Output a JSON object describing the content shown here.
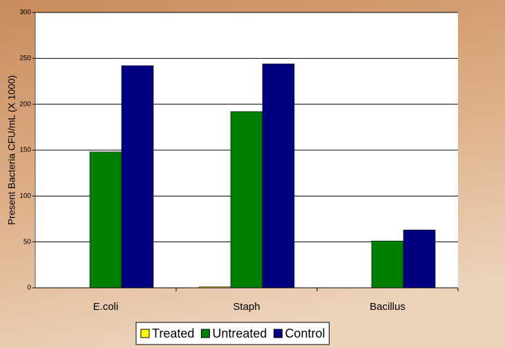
{
  "chart_data": {
    "type": "bar",
    "y_label": "Present Bacteria CFU/mL (X 1000)",
    "categories": [
      "E.coli",
      "Staph",
      "Bacillus"
    ],
    "series": [
      {
        "name": "Treated",
        "color": "#ffff00",
        "values": [
          0,
          1,
          0
        ]
      },
      {
        "name": "Untreated",
        "color": "#008000",
        "values": [
          148,
          192,
          51
        ]
      },
      {
        "name": "Control",
        "color": "#000080",
        "values": [
          242,
          244,
          63
        ]
      }
    ],
    "ylim": [
      0,
      300
    ],
    "yticks": [
      0,
      50,
      100,
      150,
      200,
      250,
      300
    ],
    "grid": true,
    "legend": "bottom"
  }
}
